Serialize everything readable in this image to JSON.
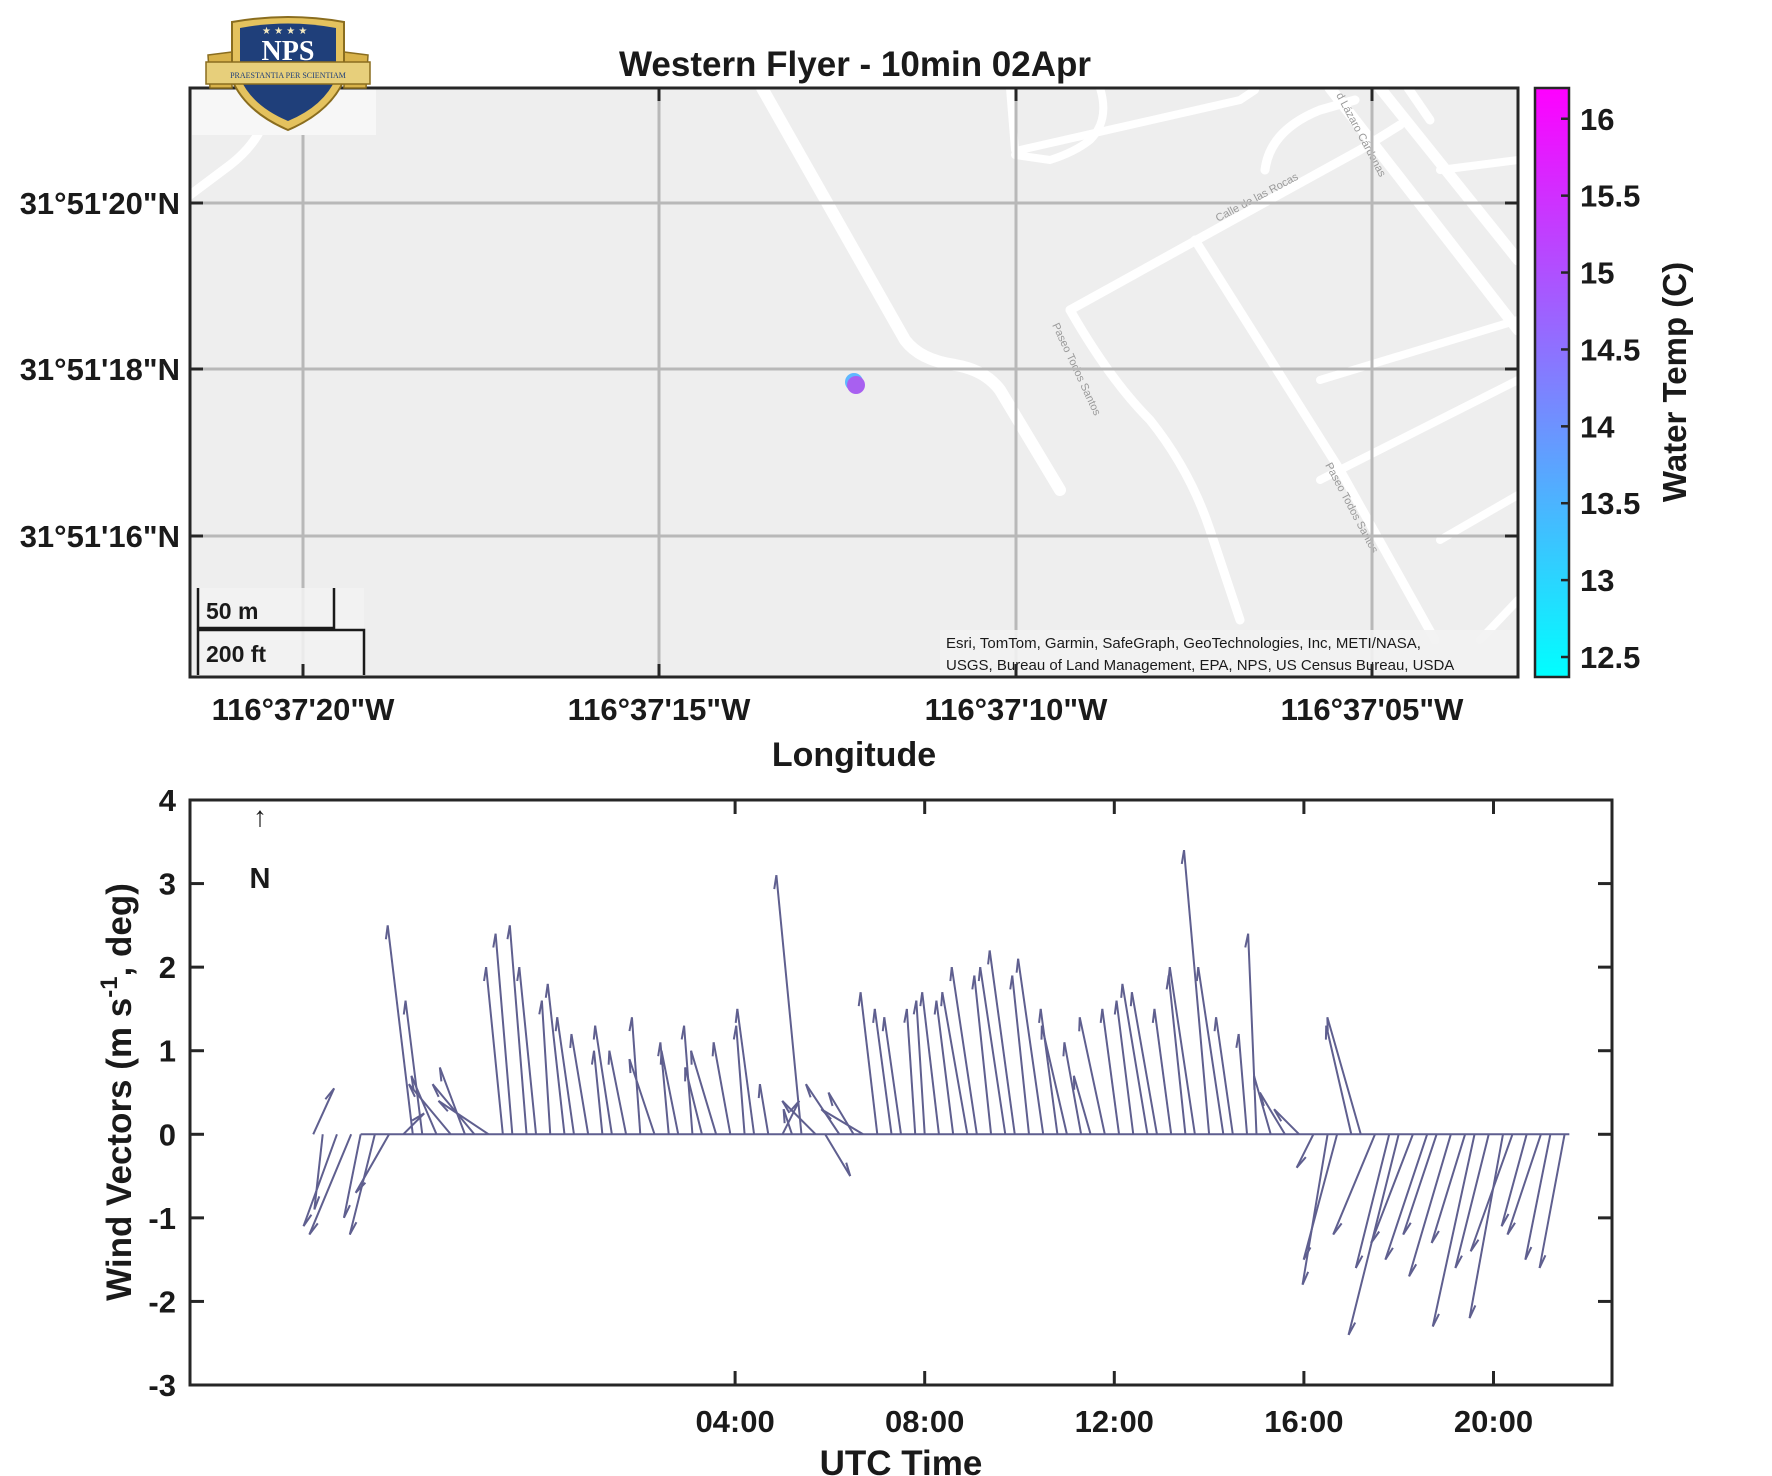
{
  "title": "Western Flyer - 10min 02Apr",
  "logo": {
    "text": "NPS",
    "motto": "PRAESTANTIA PER SCIENTIAM"
  },
  "map": {
    "xlabel": "Longitude",
    "lon_ticks": [
      "116°37'20\"W",
      "116°37'15\"W",
      "116°37'10\"W",
      "116°37'05\"W"
    ],
    "lat_ticks": [
      "31°51'20\"N",
      "31°51'18\"N",
      "31°51'16\"N"
    ],
    "scalebar": {
      "metric": "50 m",
      "imperial": "200 ft"
    },
    "attribution_line1": "Esri, TomTom, Garmin, SafeGraph, GeoTechnologies, Inc, METI/NASA,",
    "attribution_line2": "USGS, Bureau of Land Management, EPA, NPS, US Census Bureau, USDA",
    "street_names": [
      "Calle de las Rocas",
      "Paseo Todos Santos",
      "Paseo Todos Santos",
      "d Lázaro Cárdenas"
    ],
    "point_color": "#a860f0",
    "basemap_color": "#eeeeee",
    "colorbar": {
      "label": "Water Temp (C)",
      "ticks": [
        "16",
        "15.5",
        "15",
        "14.5",
        "14",
        "13.5",
        "13",
        "12.5"
      ],
      "range": [
        12.37,
        16.2
      ],
      "color_low": "#00ffff",
      "color_high": "#ff00ff"
    }
  },
  "north_arrow": {
    "arrow": "↑",
    "label": "N"
  },
  "chart_data": {
    "type": "quiver",
    "title": "",
    "xlabel": "UTC Time",
    "ylabel": "Wind Vectors (m s-1, deg)",
    "x_ticks": [
      "04:00",
      "08:00",
      "12:00",
      "16:00",
      "20:00"
    ],
    "y_ticks": [
      "4",
      "3",
      "2",
      "1",
      "0",
      "-1",
      "-2",
      "-3"
    ],
    "ylim": [
      -3,
      4
    ],
    "xlim_hours": [
      -7.5,
      22.5
    ],
    "line_color": "#5f5f8f",
    "baseline_range_hours": [
      -3.9,
      21.6
    ],
    "vectors": [
      {
        "x": -4.9,
        "u": 0.25,
        "v": 0.55
      },
      {
        "x": -4.7,
        "u": -0.1,
        "v": -0.9
      },
      {
        "x": -4.4,
        "u": -0.4,
        "v": -1.1
      },
      {
        "x": -4.1,
        "u": -0.5,
        "v": -1.2
      },
      {
        "x": -3.9,
        "u": -0.2,
        "v": -1.0
      },
      {
        "x": -3.6,
        "u": -0.3,
        "v": -1.2
      },
      {
        "x": -3.3,
        "u": -0.4,
        "v": -0.7
      },
      {
        "x": -3.0,
        "u": 0.25,
        "v": 0.25
      },
      {
        "x": -2.8,
        "u": -0.3,
        "v": 2.5
      },
      {
        "x": -2.6,
        "u": -0.2,
        "v": 1.6
      },
      {
        "x": -2.3,
        "u": -0.3,
        "v": 0.7
      },
      {
        "x": -2.0,
        "u": -0.5,
        "v": 0.6
      },
      {
        "x": -1.7,
        "u": -0.3,
        "v": 0.8
      },
      {
        "x": -1.5,
        "u": -0.5,
        "v": 0.6
      },
      {
        "x": -1.2,
        "u": -0.6,
        "v": 0.4
      },
      {
        "x": -0.9,
        "u": -0.2,
        "v": 2.0
      },
      {
        "x": -0.7,
        "u": -0.2,
        "v": 2.4
      },
      {
        "x": -0.4,
        "u": -0.2,
        "v": 2.5
      },
      {
        "x": -0.2,
        "u": -0.2,
        "v": 2.0
      },
      {
        "x": 0.1,
        "u": -0.1,
        "v": 1.6
      },
      {
        "x": 0.4,
        "u": -0.2,
        "v": 1.8
      },
      {
        "x": 0.6,
        "u": -0.2,
        "v": 1.4
      },
      {
        "x": 0.9,
        "u": -0.2,
        "v": 1.2
      },
      {
        "x": 1.2,
        "u": -0.1,
        "v": 1.0
      },
      {
        "x": 1.4,
        "u": -0.2,
        "v": 1.3
      },
      {
        "x": 1.7,
        "u": -0.2,
        "v": 1.0
      },
      {
        "x": 2.0,
        "u": -0.1,
        "v": 1.4
      },
      {
        "x": 2.3,
        "u": -0.3,
        "v": 0.9
      },
      {
        "x": 2.6,
        "u": -0.1,
        "v": 1.1
      },
      {
        "x": 2.8,
        "u": -0.2,
        "v": 1.0
      },
      {
        "x": 3.1,
        "u": -0.1,
        "v": 1.3
      },
      {
        "x": 3.3,
        "u": -0.2,
        "v": 0.8
      },
      {
        "x": 3.6,
        "u": -0.3,
        "v": 1.0
      },
      {
        "x": 3.9,
        "u": -0.2,
        "v": 1.1
      },
      {
        "x": 4.2,
        "u": -0.1,
        "v": 1.3
      },
      {
        "x": 4.4,
        "u": -0.2,
        "v": 1.5
      },
      {
        "x": 4.7,
        "u": -0.1,
        "v": 0.6
      },
      {
        "x": 5.0,
        "u": 0.2,
        "v": 0.4
      },
      {
        "x": 5.2,
        "u": -0.1,
        "v": 0.3
      },
      {
        "x": 5.4,
        "u": -0.3,
        "v": 3.1
      },
      {
        "x": 5.7,
        "u": -0.4,
        "v": 0.4
      },
      {
        "x": 5.9,
        "u": 0.3,
        "v": -0.5
      },
      {
        "x": 6.2,
        "u": -0.4,
        "v": 0.6
      },
      {
        "x": 6.5,
        "u": -0.3,
        "v": 0.5
      },
      {
        "x": 6.7,
        "u": -0.5,
        "v": 0.3
      },
      {
        "x": 7.0,
        "u": -0.2,
        "v": 1.7
      },
      {
        "x": 7.3,
        "u": -0.2,
        "v": 1.5
      },
      {
        "x": 7.5,
        "u": -0.2,
        "v": 1.4
      },
      {
        "x": 7.8,
        "u": -0.1,
        "v": 1.5
      },
      {
        "x": 8.0,
        "u": -0.1,
        "v": 1.6
      },
      {
        "x": 8.3,
        "u": -0.2,
        "v": 1.7
      },
      {
        "x": 8.6,
        "u": -0.2,
        "v": 1.6
      },
      {
        "x": 8.9,
        "u": -0.3,
        "v": 1.7
      },
      {
        "x": 9.1,
        "u": -0.3,
        "v": 2.0
      },
      {
        "x": 9.4,
        "u": -0.2,
        "v": 1.9
      },
      {
        "x": 9.7,
        "u": -0.3,
        "v": 2.0
      },
      {
        "x": 9.9,
        "u": -0.3,
        "v": 2.2
      },
      {
        "x": 10.2,
        "u": -0.2,
        "v": 1.9
      },
      {
        "x": 10.5,
        "u": -0.3,
        "v": 2.1
      },
      {
        "x": 10.8,
        "u": -0.2,
        "v": 1.5
      },
      {
        "x": 11.0,
        "u": -0.3,
        "v": 1.3
      },
      {
        "x": 11.3,
        "u": -0.2,
        "v": 1.1
      },
      {
        "x": 11.5,
        "u": -0.2,
        "v": 0.7
      },
      {
        "x": 11.8,
        "u": -0.3,
        "v": 1.4
      },
      {
        "x": 12.1,
        "u": -0.2,
        "v": 1.5
      },
      {
        "x": 12.4,
        "u": -0.2,
        "v": 1.6
      },
      {
        "x": 12.7,
        "u": -0.3,
        "v": 1.8
      },
      {
        "x": 12.9,
        "u": -0.3,
        "v": 1.7
      },
      {
        "x": 13.2,
        "u": -0.2,
        "v": 1.5
      },
      {
        "x": 13.5,
        "u": -0.2,
        "v": 1.9
      },
      {
        "x": 13.7,
        "u": -0.3,
        "v": 2.0
      },
      {
        "x": 14.0,
        "u": -0.3,
        "v": 3.4
      },
      {
        "x": 14.3,
        "u": -0.3,
        "v": 2.0
      },
      {
        "x": 14.5,
        "u": -0.2,
        "v": 1.4
      },
      {
        "x": 14.8,
        "u": -0.1,
        "v": 1.2
      },
      {
        "x": 15.0,
        "u": -0.1,
        "v": 2.4
      },
      {
        "x": 15.3,
        "u": -0.2,
        "v": 0.7
      },
      {
        "x": 15.6,
        "u": -0.3,
        "v": 0.5
      },
      {
        "x": 15.9,
        "u": -0.3,
        "v": 0.3
      },
      {
        "x": 16.2,
        "u": -0.2,
        "v": -0.4
      },
      {
        "x": 16.5,
        "u": -0.3,
        "v": -1.8
      },
      {
        "x": 16.7,
        "u": -0.4,
        "v": -1.5
      },
      {
        "x": 17.0,
        "u": -0.3,
        "v": 1.3
      },
      {
        "x": 17.2,
        "u": -0.4,
        "v": 1.4
      },
      {
        "x": 17.5,
        "u": -0.5,
        "v": -1.2
      },
      {
        "x": 17.8,
        "u": -0.4,
        "v": -1.6
      },
      {
        "x": 18.0,
        "u": -0.6,
        "v": -2.4
      },
      {
        "x": 18.3,
        "u": -0.5,
        "v": -1.3
      },
      {
        "x": 18.6,
        "u": -0.5,
        "v": -1.5
      },
      {
        "x": 18.8,
        "u": -0.4,
        "v": -1.2
      },
      {
        "x": 19.1,
        "u": -0.5,
        "v": -1.7
      },
      {
        "x": 19.4,
        "u": -0.4,
        "v": -1.3
      },
      {
        "x": 19.6,
        "u": -0.5,
        "v": -2.3
      },
      {
        "x": 19.9,
        "u": -0.4,
        "v": -1.6
      },
      {
        "x": 20.2,
        "u": -0.4,
        "v": -2.2
      },
      {
        "x": 20.4,
        "u": -0.5,
        "v": -1.4
      },
      {
        "x": 20.7,
        "u": -0.3,
        "v": -1.1
      },
      {
        "x": 21.0,
        "u": -0.4,
        "v": -1.2
      },
      {
        "x": 21.2,
        "u": -0.3,
        "v": -1.5
      },
      {
        "x": 21.5,
        "u": -0.3,
        "v": -1.6
      }
    ]
  }
}
